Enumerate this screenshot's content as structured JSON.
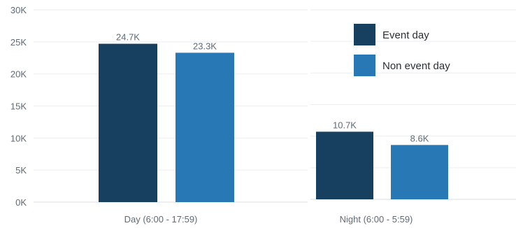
{
  "chart_data": {
    "type": "bar",
    "title": "",
    "xlabel": "",
    "ylabel": "",
    "ylim": [
      0,
      30000
    ],
    "yticks": [
      0,
      5000,
      10000,
      15000,
      20000,
      25000,
      30000
    ],
    "ytick_labels": [
      "0K",
      "5K",
      "10K",
      "15K",
      "20K",
      "25K",
      "30K"
    ],
    "grid": true,
    "legend_position": "top-right",
    "categories": [
      "Day (6:00 - 17:59)",
      "Night (6:00 - 5:59)"
    ],
    "series": [
      {
        "name": "Event day",
        "color": "#173f5f",
        "values": [
          24700,
          10700
        ],
        "labels": [
          "24.7K",
          "10.7K"
        ]
      },
      {
        "name": "Non event day",
        "color": "#2878b5",
        "values": [
          23300,
          8600
        ],
        "labels": [
          "23.3K",
          "8.6K"
        ]
      }
    ]
  }
}
